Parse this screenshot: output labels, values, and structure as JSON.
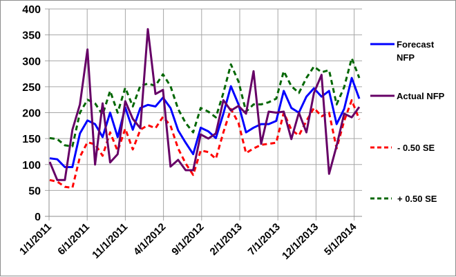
{
  "chart_data": {
    "type": "line",
    "title": "",
    "xlabel": "",
    "ylabel": "",
    "ylim": [
      0,
      400
    ],
    "yticks": [
      0,
      50,
      100,
      150,
      200,
      250,
      300,
      350,
      400
    ],
    "xtick_labels": [
      "1/1/2011",
      "6/1/2011",
      "11/1/2011",
      "4/1/2012",
      "9/1/2012",
      "2/1/2013",
      "7/1/2013",
      "12/1/2013",
      "5/1/2014"
    ],
    "grid": true,
    "legend_position": "right",
    "x": [
      "1/2011",
      "2/2011",
      "3/2011",
      "4/2011",
      "5/2011",
      "6/2011",
      "7/2011",
      "8/2011",
      "9/2011",
      "10/2011",
      "11/2011",
      "12/2011",
      "1/2012",
      "2/2012",
      "3/2012",
      "4/2012",
      "5/2012",
      "6/2012",
      "7/2012",
      "8/2012",
      "9/2012",
      "10/2012",
      "11/2012",
      "12/2012",
      "1/2013",
      "2/2013",
      "3/2013",
      "4/2013",
      "5/2013",
      "6/2013",
      "7/2013",
      "8/2013",
      "9/2013",
      "10/2013",
      "11/2013",
      "12/2013",
      "1/2014",
      "2/2014",
      "3/2014",
      "4/2014",
      "5/2014",
      "6/2014"
    ],
    "series": [
      {
        "name": "Forecast NFP",
        "color": "#0000ff",
        "dash": "solid",
        "values": [
          112,
          110,
          95,
          95,
          160,
          185,
          178,
          153,
          200,
          153,
          210,
          167,
          209,
          215,
          212,
          229,
          209,
          166,
          142,
          120,
          171,
          164,
          151,
          198,
          251,
          216,
          162,
          171,
          178,
          178,
          184,
          242,
          209,
          200,
          231,
          247,
          231,
          242,
          178,
          207,
          267,
          227
        ]
      },
      {
        "name": "Actual NFP",
        "color": "#660066",
        "dash": "solid",
        "values": [
          105,
          70,
          70,
          167,
          216,
          322,
          100,
          218,
          104,
          120,
          222,
          188,
          170,
          361,
          236,
          244,
          96,
          109,
          89,
          89,
          158,
          150,
          160,
          224,
          204,
          213,
          198,
          280,
          140,
          202,
          200,
          202,
          149,
          200,
          162,
          238,
          273,
          82,
          136,
          198,
          191,
          211
        ]
      },
      {
        "name": "- 0.50 SE",
        "color": "#ff0000",
        "dash": "dashed",
        "values": [
          70,
          67,
          57,
          55,
          115,
          143,
          139,
          117,
          162,
          126,
          169,
          129,
          167,
          176,
          170,
          192,
          175,
          131,
          102,
          80,
          127,
          124,
          111,
          162,
          207,
          180,
          122,
          131,
          138,
          140,
          142,
          200,
          167,
          156,
          184,
          209,
          193,
          200,
          131,
          184,
          224,
          187
        ]
      },
      {
        "name": "+ 0.50 SE",
        "color": "#006600",
        "dash": "dashed",
        "values": [
          151,
          149,
          137,
          135,
          200,
          225,
          218,
          196,
          242,
          200,
          248,
          212,
          252,
          256,
          252,
          274,
          251,
          207,
          180,
          162,
          209,
          202,
          191,
          238,
          293,
          260,
          202,
          216,
          216,
          220,
          227,
          280,
          251,
          238,
          267,
          289,
          278,
          282,
          216,
          249,
          305,
          267
        ]
      }
    ]
  },
  "legend": {
    "items": [
      {
        "label_line1": "Forecast",
        "label_line2": "NFP"
      },
      {
        "label_line1": "Actual NFP",
        "label_line2": ""
      },
      {
        "label_line1": "- 0.50 SE",
        "label_line2": ""
      },
      {
        "label_line1": "+ 0.50 SE",
        "label_line2": ""
      }
    ]
  }
}
